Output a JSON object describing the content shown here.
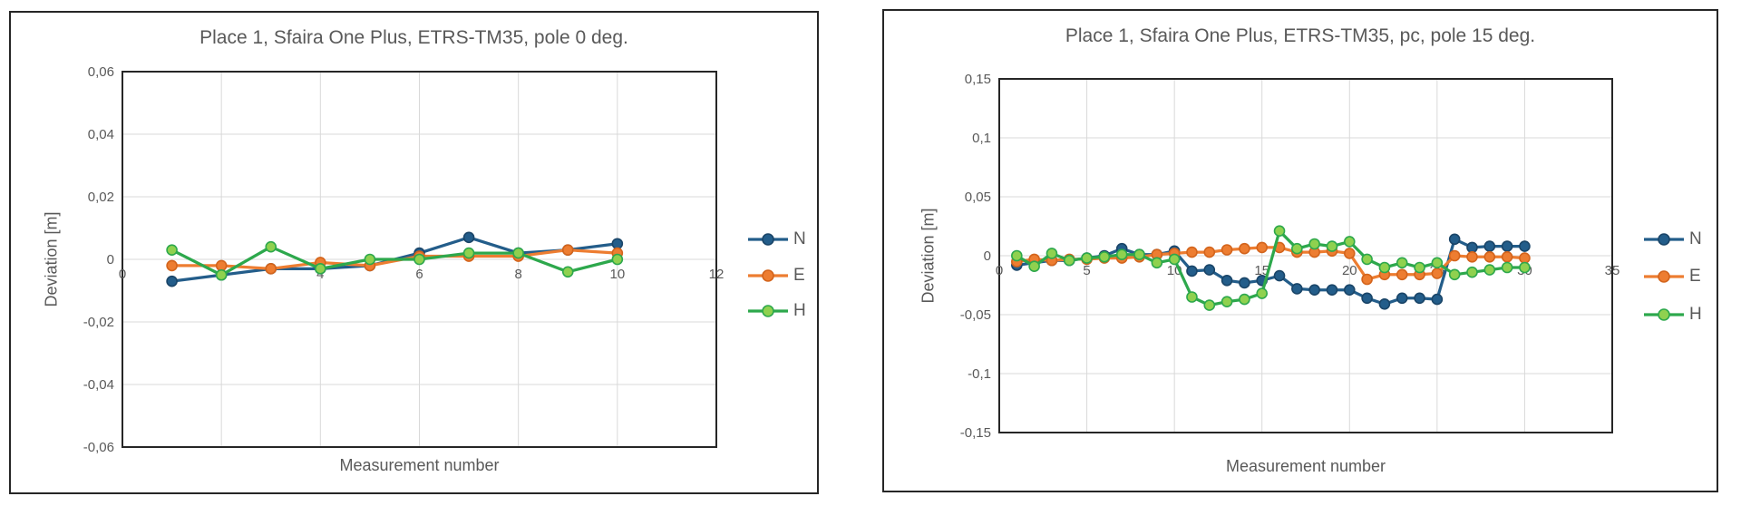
{
  "colors": {
    "grid": "#D9D9D9",
    "plot_border": "#262626",
    "text": "#595959",
    "series_n": "#235D8A",
    "series_e": "#ED7D31",
    "series_h": "#2DA84C",
    "marker_h_fill": "#8FD14F"
  },
  "chart_data": [
    {
      "type": "line",
      "title": "Place 1, Sfaira One Plus, ETRS-TM35, pole 0 deg.",
      "xlabel": "Measurement number",
      "ylabel": "Deviation [m]",
      "xlim": [
        0,
        12
      ],
      "ylim": [
        -0.06,
        0.06
      ],
      "grid": true,
      "legend_position": "right",
      "xticks": [
        0,
        2,
        4,
        6,
        8,
        10,
        12
      ],
      "xtick_labels": [
        "0",
        "2",
        "4",
        "6",
        "8",
        "10",
        "12"
      ],
      "yticks": [
        0.06,
        0.04,
        0.02,
        0,
        -0.02,
        -0.04,
        -0.06
      ],
      "ytick_labels": [
        "0,06",
        "0,04",
        "0,02",
        "0",
        "-0,02",
        "-0,04",
        "-0,06"
      ],
      "x": [
        1,
        2,
        3,
        4,
        5,
        6,
        7,
        8,
        9,
        10
      ],
      "series": [
        {
          "name": "N",
          "color": "#235D8A",
          "marker_fill": "#235D8A",
          "marker_stroke": "#1A4568",
          "values": [
            -0.007,
            -0.005,
            -0.003,
            -0.003,
            -0.002,
            0.002,
            0.007,
            0.002,
            0.003,
            0.005
          ]
        },
        {
          "name": "E",
          "color": "#ED7D31",
          "marker_fill": "#ED7D31",
          "marker_stroke": "#D3641C",
          "values": [
            -0.002,
            -0.002,
            -0.003,
            -0.001,
            -0.002,
            0.001,
            0.001,
            0.001,
            0.003,
            0.002
          ]
        },
        {
          "name": "H",
          "color": "#2DA84C",
          "marker_fill": "#8FD14F",
          "marker_stroke": "#2DA84C",
          "values": [
            0.003,
            -0.005,
            0.004,
            -0.003,
            0.0,
            0.0,
            0.002,
            0.002,
            -0.004,
            0.0
          ]
        }
      ]
    },
    {
      "type": "line",
      "title": "Place 1, Sfaira One Plus, ETRS-TM35, pc, pole 15 deg.",
      "xlabel": "Measurement number",
      "ylabel": "Deviation [m]",
      "xlim": [
        0,
        35
      ],
      "ylim": [
        -0.15,
        0.15
      ],
      "grid": true,
      "legend_position": "right",
      "xticks": [
        0,
        5,
        10,
        15,
        20,
        25,
        30,
        35
      ],
      "xtick_labels": [
        "0",
        "5",
        "10",
        "15",
        "20",
        "25",
        "30",
        "35"
      ],
      "yticks": [
        0.15,
        0.1,
        0.05,
        0,
        -0.05,
        -0.1,
        -0.15
      ],
      "ytick_labels": [
        "0,15",
        "0,1",
        "0,05",
        "0",
        "-0,05",
        "-0,1",
        "-0,15"
      ],
      "x": [
        1,
        2,
        3,
        4,
        5,
        6,
        7,
        8,
        9,
        10,
        11,
        12,
        13,
        14,
        15,
        16,
        17,
        18,
        19,
        20,
        21,
        22,
        23,
        24,
        25,
        26,
        27,
        28,
        29,
        30
      ],
      "series": [
        {
          "name": "N",
          "color": "#235D8A",
          "marker_fill": "#235D8A",
          "marker_stroke": "#1A4568",
          "values": [
            -0.008,
            -0.006,
            -0.004,
            -0.004,
            -0.002,
            0.0,
            0.006,
            0.001,
            0.001,
            0.004,
            -0.013,
            -0.012,
            -0.021,
            -0.023,
            -0.021,
            -0.017,
            -0.028,
            -0.029,
            -0.029,
            -0.029,
            -0.036,
            -0.041,
            -0.036,
            -0.036,
            -0.037,
            0.014,
            0.007,
            0.008,
            0.008,
            0.008
          ]
        },
        {
          "name": "E",
          "color": "#ED7D31",
          "marker_fill": "#ED7D31",
          "marker_stroke": "#D3641C",
          "values": [
            -0.005,
            -0.003,
            -0.004,
            -0.003,
            -0.003,
            -0.002,
            -0.002,
            -0.001,
            0.001,
            0.002,
            0.003,
            0.003,
            0.005,
            0.006,
            0.007,
            0.007,
            0.003,
            0.003,
            0.004,
            0.002,
            -0.02,
            -0.016,
            -0.016,
            -0.016,
            -0.015,
            0.0,
            -0.001,
            -0.001,
            -0.001,
            -0.002
          ]
        },
        {
          "name": "H",
          "color": "#2DA84C",
          "marker_fill": "#8FD14F",
          "marker_stroke": "#2DA84C",
          "values": [
            0.0,
            -0.009,
            0.002,
            -0.004,
            -0.002,
            -0.001,
            0.001,
            0.001,
            -0.006,
            -0.003,
            -0.035,
            -0.042,
            -0.039,
            -0.037,
            -0.032,
            0.021,
            0.006,
            0.01,
            0.008,
            0.012,
            -0.003,
            -0.01,
            -0.006,
            -0.01,
            -0.006,
            -0.016,
            -0.014,
            -0.012,
            -0.01,
            -0.01
          ]
        }
      ]
    }
  ]
}
